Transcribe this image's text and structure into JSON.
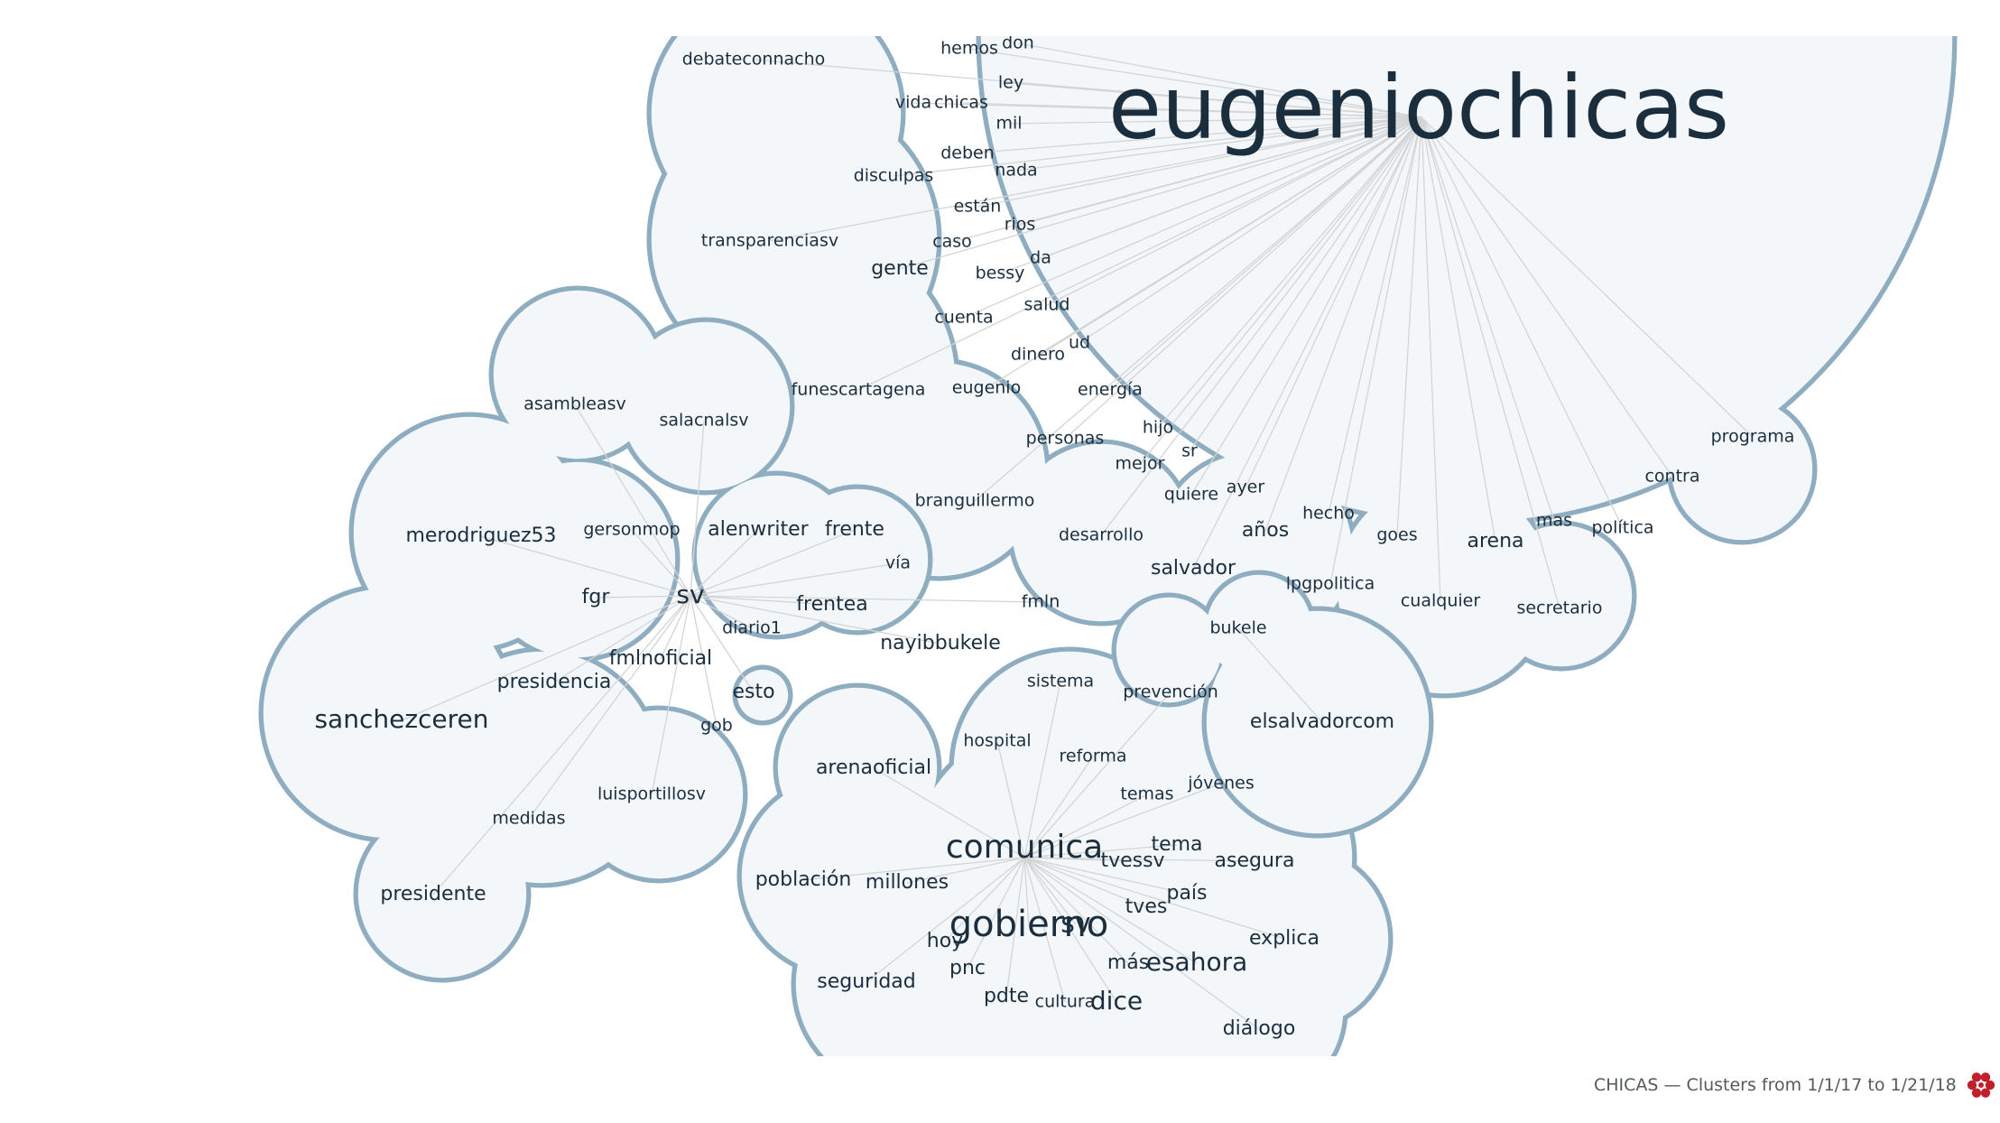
{
  "footer": {
    "caption": "CHICAS — Clusters from 1/1/17 to 1/21/18",
    "logo_icon": "red-flower-icon",
    "logo_color": "#c0202a"
  },
  "colors": {
    "cluster_fill": "#f4f7fa",
    "cluster_stroke": "#8fadc0",
    "edge": "#d4d4d4",
    "text": "#1b2e3e"
  },
  "clusters": [
    {
      "name": "eugeniochicas",
      "hub": "eugeniochicas",
      "words": [
        "eugeniochicas",
        "debateconnacho",
        "hemos",
        "don",
        "ley",
        "vida",
        "chicas",
        "mil",
        "deben",
        "nada",
        "disculpas",
        "están",
        "rios",
        "transparenciasv",
        "caso",
        "da",
        "gente",
        "bessy",
        "salud",
        "cuenta",
        "ud",
        "dinero",
        "funescartagena",
        "eugenio",
        "energía",
        "hijo",
        "personas",
        "sr",
        "mejor",
        "programa",
        "ayer",
        "quiere",
        "contra",
        "branguillermo",
        "hecho",
        "años",
        "mas",
        "política",
        "desarrollo",
        "goes",
        "arena",
        "salvador",
        "lpgpolitica",
        "cualquier",
        "secretario"
      ]
    },
    {
      "name": "sv",
      "hub": "sv",
      "words": [
        "asambleasv",
        "salacnalsv",
        "merodriguez53",
        "gersonmop",
        "alenwriter",
        "frente",
        "vía",
        "sv",
        "fgr",
        "frentea",
        "fmln",
        "diario1",
        "fmlnoficial",
        "nayibbukele",
        "presidencia",
        "esto",
        "sanchezceren",
        "gob",
        "luisportillosv",
        "medidas",
        "presidente"
      ]
    },
    {
      "name": "comunica",
      "hub": "comunica",
      "words": [
        "sistema",
        "prevención",
        "hospital",
        "reforma",
        "arenaoficial",
        "temas",
        "jóvenes",
        "comunica",
        "tema",
        "tvessv",
        "asegura",
        "población",
        "millones",
        "país",
        "tves",
        "gobierno",
        "sv",
        "explica",
        "hoy",
        "pnc",
        "más",
        "esahora",
        "seguridad",
        "pdte",
        "cultura",
        "dice",
        "diálogo"
      ]
    },
    {
      "name": "bukele",
      "hub": "elsalvadorcom",
      "words": [
        "bukele",
        "elsalvadorcom"
      ]
    }
  ]
}
